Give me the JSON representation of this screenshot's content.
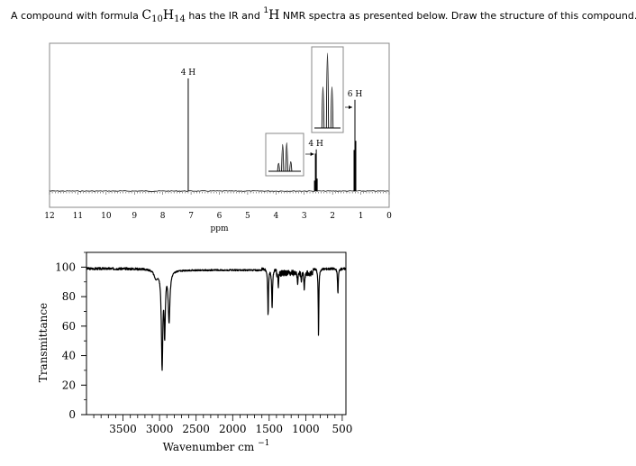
{
  "question": {
    "prefix": "A compound with formula",
    "formula_element_1": "C",
    "formula_count_1": "10",
    "formula_element_2": "H",
    "formula_count_2": "14",
    "middle": "has the IR and",
    "nucleus_mass": "1",
    "nucleus_symbol": "H",
    "suffix": "NMR spectra as presented below. Draw the structure of this compound."
  },
  "colors": {
    "ink": "#000000",
    "frame": "#888888",
    "grid": "#000000"
  },
  "chart_data": [
    {
      "type": "line",
      "name": "1H NMR spectrum",
      "xlabel": "ppm",
      "xlim": [
        12,
        0
      ],
      "x_direction": "decreasing",
      "x_ticks": [
        12,
        11,
        10,
        9,
        8,
        7,
        6,
        5,
        4,
        3,
        2,
        1,
        0
      ],
      "x_tick_labels": [
        "12",
        "11",
        "10",
        "9",
        "8",
        "7",
        "6",
        "5",
        "4",
        "3",
        "2",
        "1",
        "0"
      ],
      "peaks": [
        {
          "shift": 7.1,
          "height": 1.0,
          "integration": "4 H",
          "multiplicity": "singlet"
        },
        {
          "shift": 2.59,
          "height": 0.37,
          "integration": "4 H",
          "multiplicity": "quartet"
        },
        {
          "shift": 1.21,
          "height": 0.81,
          "integration": "6 H",
          "multiplicity": "triplet"
        }
      ],
      "insets": [
        {
          "for_shift": 2.59,
          "multiplicity": "quartet",
          "relative_heights": [
            0.25,
            0.85,
            0.9,
            0.3
          ]
        },
        {
          "for_shift": 1.21,
          "multiplicity": "triplet",
          "relative_heights": [
            0.55,
            1.0,
            0.55
          ]
        }
      ]
    },
    {
      "type": "line",
      "name": "IR spectrum",
      "xlabel": "Wavenumber cm",
      "xlabel_superscript": "−1",
      "ylabel": "Transmittance",
      "xlim": [
        4000,
        450
      ],
      "x_direction": "decreasing",
      "ylim": [
        0,
        110
      ],
      "x_ticks": [
        3500,
        3000,
        2500,
        2000,
        1500,
        1000,
        500
      ],
      "x_tick_labels": [
        "3500",
        "3000",
        "2500",
        "2000",
        "1500",
        "1000",
        "500"
      ],
      "y_ticks": [
        0,
        20,
        40,
        60,
        80,
        100
      ],
      "y_tick_labels": [
        "0",
        "20",
        "40",
        "60",
        "80",
        "100"
      ],
      "baseline": 99,
      "bands": [
        {
          "wavenumber": 3050,
          "transmittance": 93
        },
        {
          "wavenumber": 2965,
          "transmittance": 30
        },
        {
          "wavenumber": 2930,
          "transmittance": 50
        },
        {
          "wavenumber": 2870,
          "transmittance": 62
        },
        {
          "wavenumber": 1515,
          "transmittance": 67
        },
        {
          "wavenumber": 1460,
          "transmittance": 72
        },
        {
          "wavenumber": 1375,
          "transmittance": 86
        },
        {
          "wavenumber": 1110,
          "transmittance": 88
        },
        {
          "wavenumber": 1060,
          "transmittance": 90
        },
        {
          "wavenumber": 1020,
          "transmittance": 84
        },
        {
          "wavenumber": 825,
          "transmittance": 52
        },
        {
          "wavenumber": 560,
          "transmittance": 82
        }
      ]
    }
  ]
}
